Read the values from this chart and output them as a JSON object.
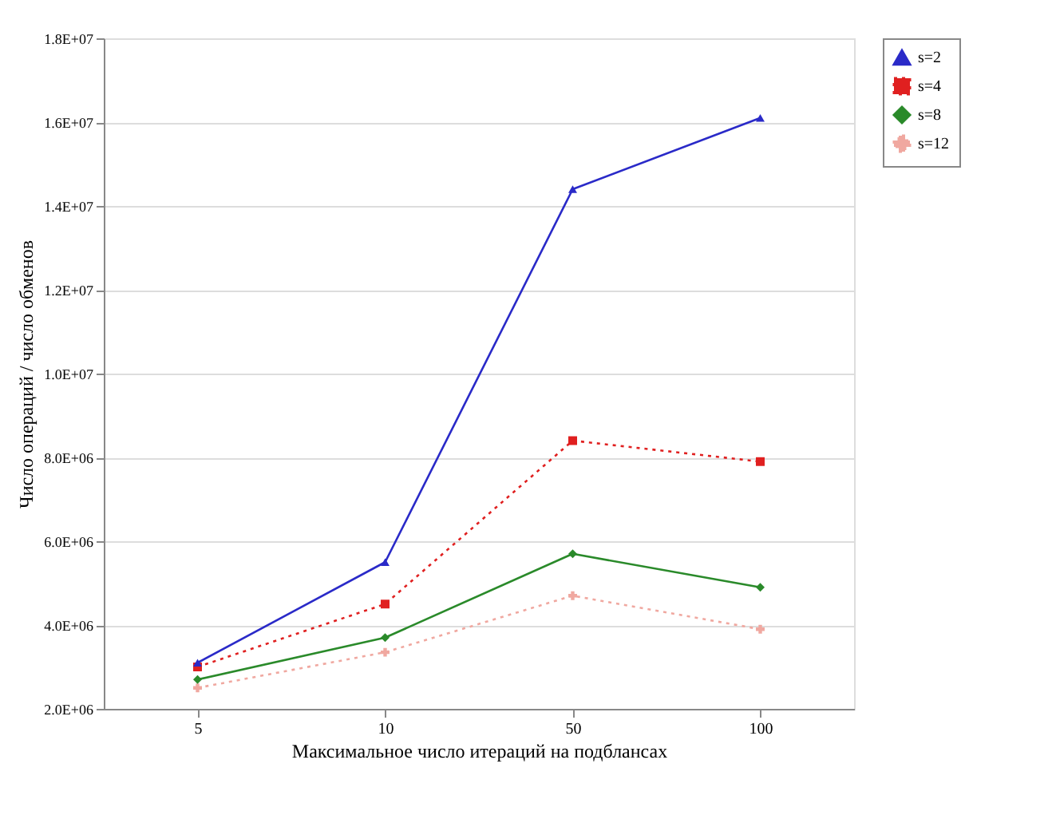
{
  "chart_data": {
    "type": "line",
    "xlabel": "Максимальное число итераций на подблансах",
    "ylabel": "Число операций / число обменов",
    "categories": [
      "5",
      "10",
      "50",
      "100"
    ],
    "series": [
      {
        "name": "s=2",
        "color": "#2a2ac8",
        "marker": "triangle",
        "line_style": "solid",
        "values": [
          3100000,
          5500000,
          14400000,
          16100000
        ]
      },
      {
        "name": "s=4",
        "color": "#e02020",
        "marker": "square",
        "line_style": "dotted",
        "values": [
          3000000,
          4500000,
          8400000,
          7900000
        ]
      },
      {
        "name": "s=8",
        "color": "#2a8a2a",
        "marker": "diamond",
        "line_style": "solid",
        "values": [
          2700000,
          3700000,
          5700000,
          4900000
        ]
      },
      {
        "name": "s=12",
        "color": "#f0a8a0",
        "marker": "cross",
        "line_style": "dotted",
        "values": [
          2500000,
          3350000,
          4700000,
          3900000
        ]
      }
    ],
    "ylim": [
      2000000,
      18000000
    ],
    "yticks": [
      {
        "value": 2000000,
        "label": "2.0E+06"
      },
      {
        "value": 4000000,
        "label": "4.0E+06"
      },
      {
        "value": 6000000,
        "label": "6.0E+06"
      },
      {
        "value": 8000000,
        "label": "8.0E+06"
      },
      {
        "value": 10000000,
        "label": "1.0E+07"
      },
      {
        "value": 12000000,
        "label": "1.2E+07"
      },
      {
        "value": 14000000,
        "label": "1.4E+07"
      },
      {
        "value": 16000000,
        "label": "1.6E+07"
      },
      {
        "value": 18000000,
        "label": "1.8E+07"
      }
    ],
    "grid": "y",
    "legend": "right"
  }
}
